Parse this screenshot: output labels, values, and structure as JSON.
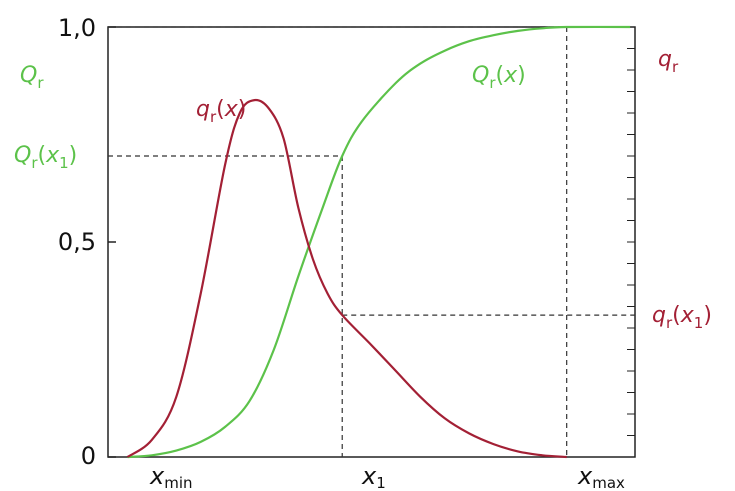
{
  "chart_data": {
    "type": "line",
    "y_left_label": {
      "main": "Q",
      "sub": "r"
    },
    "y_right_label": {
      "main": "q",
      "sub": "r"
    },
    "y_ticks": [
      {
        "value": 0,
        "label": "0"
      },
      {
        "value": 0.5,
        "label": "0,5"
      },
      {
        "value": 1.0,
        "label": "1,0"
      }
    ],
    "x_ticks": [
      {
        "key": "xmin",
        "value": 0.0,
        "main": "x",
        "sub": "min"
      },
      {
        "key": "x1",
        "value": 0.44,
        "main": "x",
        "sub": "1"
      },
      {
        "key": "xmax",
        "value": 0.9,
        "main": "x",
        "sub": "max"
      }
    ],
    "xlim": [
      -0.04,
      1.04
    ],
    "ylim": [
      0,
      1.0
    ],
    "right_axis_minor_ticks": 20,
    "grid": false,
    "series": [
      {
        "key": "Q",
        "color": "#5cc24a",
        "label": {
          "main": "Q",
          "sub": "r",
          "arg": "x"
        },
        "points": [
          [
            0.0,
            0.0
          ],
          [
            0.05,
            0.004
          ],
          [
            0.1,
            0.015
          ],
          [
            0.15,
            0.035
          ],
          [
            0.2,
            0.07
          ],
          [
            0.25,
            0.13
          ],
          [
            0.3,
            0.25
          ],
          [
            0.35,
            0.42
          ],
          [
            0.4,
            0.58
          ],
          [
            0.44,
            0.7
          ],
          [
            0.48,
            0.78
          ],
          [
            0.55,
            0.87
          ],
          [
            0.6,
            0.915
          ],
          [
            0.65,
            0.945
          ],
          [
            0.7,
            0.967
          ],
          [
            0.75,
            0.981
          ],
          [
            0.8,
            0.991
          ],
          [
            0.85,
            0.997
          ],
          [
            0.9,
            1.0
          ],
          [
            1.03,
            1.0
          ]
        ]
      },
      {
        "key": "q",
        "color": "#a32035",
        "label": {
          "main": "q",
          "sub": "r",
          "arg": "x"
        },
        "points": [
          [
            0.0,
            0.0
          ],
          [
            0.05,
            0.04
          ],
          [
            0.1,
            0.14
          ],
          [
            0.15,
            0.38
          ],
          [
            0.2,
            0.68
          ],
          [
            0.23,
            0.8
          ],
          [
            0.26,
            0.83
          ],
          [
            0.29,
            0.81
          ],
          [
            0.32,
            0.74
          ],
          [
            0.35,
            0.58
          ],
          [
            0.38,
            0.46
          ],
          [
            0.41,
            0.38
          ],
          [
            0.44,
            0.33
          ],
          [
            0.5,
            0.26
          ],
          [
            0.55,
            0.2
          ],
          [
            0.6,
            0.14
          ],
          [
            0.65,
            0.09
          ],
          [
            0.7,
            0.055
          ],
          [
            0.75,
            0.03
          ],
          [
            0.8,
            0.013
          ],
          [
            0.85,
            0.004
          ],
          [
            0.9,
            0.0
          ]
        ]
      }
    ],
    "annotations": [
      {
        "key": "Qx1",
        "value": 0.7,
        "color": "#5cc24a",
        "main": "Q",
        "sub": "r",
        "arg_main": "x",
        "arg_sub": "1"
      },
      {
        "key": "qx1",
        "value": 0.33,
        "color": "#a32035",
        "main": "q",
        "sub": "r",
        "arg_main": "x",
        "arg_sub": "1"
      }
    ]
  }
}
